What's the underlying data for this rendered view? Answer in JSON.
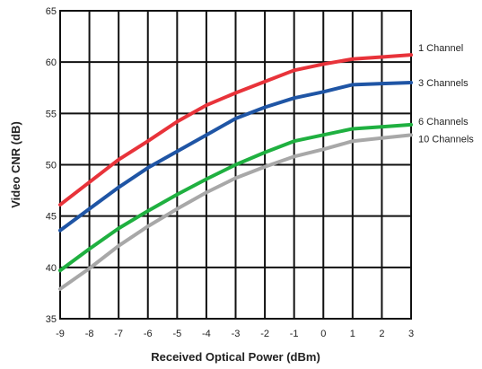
{
  "chart_data": {
    "type": "line",
    "title": "",
    "xlabel": "Received Optical Power (dBm)",
    "ylabel": "Video CNR (dB)",
    "xlim": [
      -9,
      3
    ],
    "ylim": [
      35,
      65
    ],
    "xticks": [
      "-9",
      "-8",
      "-7",
      "-6",
      "-5",
      "-4",
      "-3",
      "-2",
      "-1",
      "0",
      "1",
      "2",
      "3"
    ],
    "yticks": [
      "35",
      "40",
      "45",
      "50",
      "55",
      "60",
      "65"
    ],
    "grid": true,
    "legend": "inline-right",
    "x": [
      -9,
      -8,
      -7,
      -6,
      -5,
      -4,
      -3,
      -2,
      -1,
      0,
      1,
      2,
      3
    ],
    "series": [
      {
        "name": "1 Channel",
        "color": "#e8333a",
        "values": [
          46.1,
          48.3,
          50.5,
          52.3,
          54.2,
          55.8,
          57.0,
          58.1,
          59.2,
          59.8,
          60.3,
          60.5,
          60.7
        ]
      },
      {
        "name": "3 Channels",
        "color": "#1f55a5",
        "values": [
          43.6,
          45.7,
          47.8,
          49.7,
          51.3,
          52.9,
          54.5,
          55.6,
          56.5,
          57.1,
          57.8,
          57.9,
          58.0
        ]
      },
      {
        "name": "6 Channels",
        "color": "#1fb040",
        "values": [
          39.7,
          41.8,
          43.8,
          45.5,
          47.1,
          48.6,
          50.0,
          51.2,
          52.3,
          52.9,
          53.5,
          53.7,
          53.9
        ]
      },
      {
        "name": "10 Channels",
        "color": "#a8a8a8",
        "values": [
          37.9,
          39.9,
          42.1,
          44.0,
          45.7,
          47.3,
          48.7,
          49.8,
          50.8,
          51.5,
          52.3,
          52.6,
          52.9
        ]
      }
    ]
  }
}
